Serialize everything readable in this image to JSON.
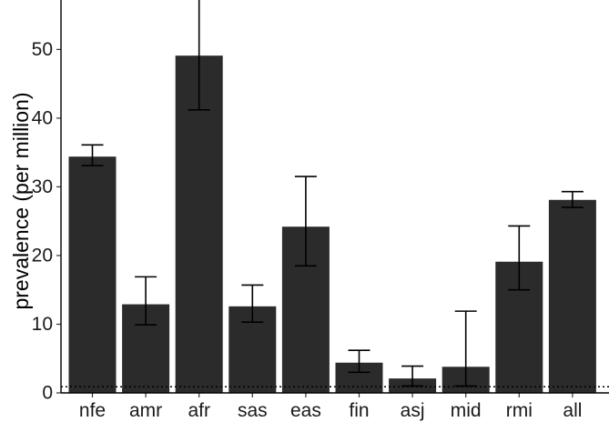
{
  "chart_data": {
    "type": "bar",
    "title": "",
    "xlabel": "",
    "ylabel": "prevalence (per million)",
    "categories": [
      "nfe",
      "amr",
      "afr",
      "sas",
      "eas",
      "fin",
      "asj",
      "mid",
      "rmi",
      "all"
    ],
    "values": [
      34.4,
      12.9,
      49.1,
      12.6,
      24.2,
      4.4,
      2.1,
      3.8,
      19.1,
      28.1
    ],
    "error_lower": [
      33.1,
      9.9,
      41.2,
      10.3,
      18.5,
      3.0,
      1.0,
      1.0,
      15.0,
      27.0
    ],
    "error_upper": [
      36.1,
      16.9,
      58.0,
      15.7,
      31.5,
      6.2,
      3.9,
      11.9,
      24.3,
      29.3
    ],
    "ylim": [
      0,
      57.2
    ],
    "yticks": [
      0,
      10,
      20,
      30,
      40,
      50
    ],
    "reference_line": 0.9,
    "grid": false,
    "colors": {
      "bar": "#2b2b2b",
      "axis": "#000000",
      "reference": "#000000"
    }
  }
}
